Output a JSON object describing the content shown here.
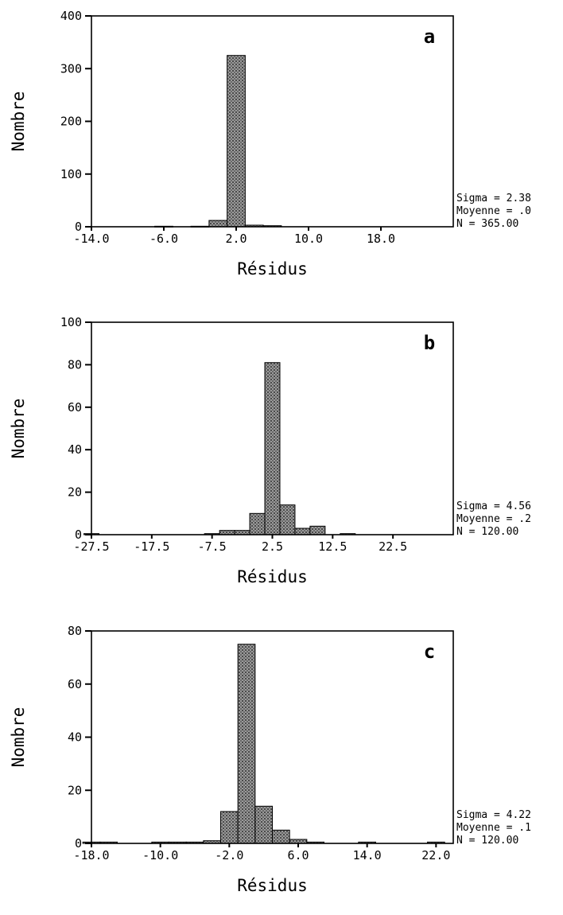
{
  "chart_data": [
    {
      "type": "bar",
      "panel_label": "a",
      "xlabel": "Résidus",
      "ylabel": "Nombre",
      "ylim": [
        0,
        400
      ],
      "yticks": [
        0,
        100,
        200,
        300,
        400
      ],
      "xlim": [
        -14.0,
        26.0
      ],
      "xticks": [
        -14.0,
        -6.0,
        2.0,
        10.0,
        18.0
      ],
      "xtick_labels": [
        "-14.0",
        "-6.0",
        "2.0",
        "10.0",
        "18.0"
      ],
      "bin_width": 2.0,
      "bins": [
        {
          "x": -6.0,
          "y": 1
        },
        {
          "x": -2.0,
          "y": 1
        },
        {
          "x": 0.0,
          "y": 12
        },
        {
          "x": 2.0,
          "y": 325
        },
        {
          "x": 4.0,
          "y": 3
        },
        {
          "x": 6.0,
          "y": 2
        }
      ],
      "stats": [
        "Sigma = 2.38",
        "Moyenne = .0",
        "N = 365.00"
      ]
    },
    {
      "type": "bar",
      "panel_label": "b",
      "xlabel": "Résidus",
      "ylabel": "Nombre",
      "ylim": [
        0,
        100
      ],
      "yticks": [
        0,
        20,
        40,
        60,
        80,
        100
      ],
      "xlim": [
        -27.5,
        32.5
      ],
      "xticks": [
        -27.5,
        -17.5,
        -7.5,
        2.5,
        12.5,
        22.5
      ],
      "xtick_labels": [
        "-27.5",
        "-17.5",
        "-7.5",
        "2.5",
        "12.5",
        "22.5"
      ],
      "bin_width": 2.5,
      "bins": [
        {
          "x": -27.5,
          "y": 0.5
        },
        {
          "x": -7.5,
          "y": 0.5
        },
        {
          "x": -5.0,
          "y": 2
        },
        {
          "x": -2.5,
          "y": 2
        },
        {
          "x": 0.0,
          "y": 10
        },
        {
          "x": 2.5,
          "y": 81
        },
        {
          "x": 5.0,
          "y": 14
        },
        {
          "x": 7.5,
          "y": 3
        },
        {
          "x": 10.0,
          "y": 4
        },
        {
          "x": 15.0,
          "y": 0.5
        }
      ],
      "stats": [
        "Sigma = 4.56",
        "Moyenne = .2",
        "N = 120.00"
      ]
    },
    {
      "type": "bar",
      "panel_label": "c",
      "xlabel": "Résidus",
      "ylabel": "Nombre",
      "ylim": [
        0,
        80
      ],
      "yticks": [
        0,
        20,
        40,
        60,
        80
      ],
      "xlim": [
        -18.0,
        24.0
      ],
      "xticks": [
        -18.0,
        -10.0,
        -2.0,
        6.0,
        14.0,
        22.0
      ],
      "xtick_labels": [
        "-18.0",
        "-10.0",
        "-2.0",
        "6.0",
        "14.0",
        "22.0"
      ],
      "bin_width": 2.0,
      "bins": [
        {
          "x": -18.0,
          "y": 0.5
        },
        {
          "x": -16.0,
          "y": 0.5
        },
        {
          "x": -10.0,
          "y": 0.5
        },
        {
          "x": -8.0,
          "y": 0.5
        },
        {
          "x": -6.0,
          "y": 0.5
        },
        {
          "x": -4.0,
          "y": 1
        },
        {
          "x": -2.0,
          "y": 12
        },
        {
          "x": 0.0,
          "y": 75
        },
        {
          "x": 2.0,
          "y": 14
        },
        {
          "x": 4.0,
          "y": 5
        },
        {
          "x": 6.0,
          "y": 1.5
        },
        {
          "x": 8.0,
          "y": 0.5
        },
        {
          "x": 14.0,
          "y": 0.5
        },
        {
          "x": 22.0,
          "y": 0.5
        }
      ],
      "stats": [
        "Sigma = 4.22",
        "Moyenne = .1",
        "N = 120.00"
      ]
    }
  ]
}
